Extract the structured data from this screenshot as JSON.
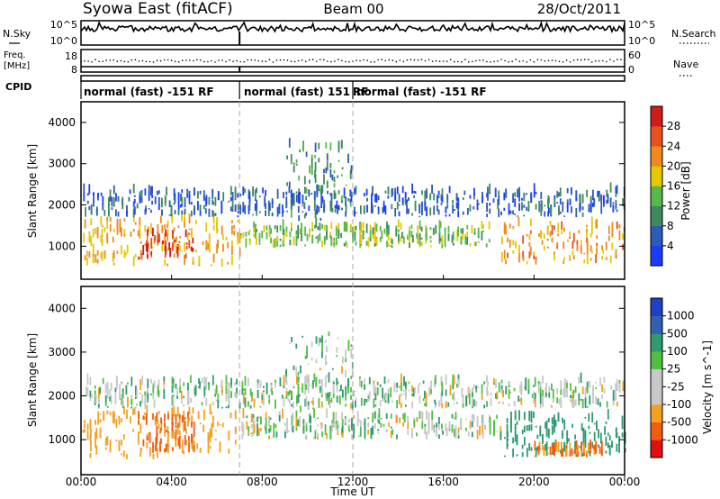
{
  "header": {
    "left": "Syowa East (fitACF)",
    "center": "Beam 00",
    "right": "28/Oct/2011"
  },
  "noise_panel": {
    "left_label": "N.Sky",
    "left_ticks": [
      "10^5",
      "10^0"
    ],
    "right_label": "N.Search",
    "right_ticks": [
      "10^5",
      "10^0"
    ]
  },
  "freq_panel": {
    "left_label_line1": "Freq.",
    "left_label_line2": "[MHz]",
    "left_ticks": [
      "18",
      "8"
    ],
    "right_label": "Nave",
    "right_ticks": [
      "60",
      "0"
    ]
  },
  "cpid_panel": {
    "label": "CPID",
    "segments": [
      {
        "text": "normal (fast) -151 RF",
        "start_hour": 0.0,
        "end_hour": 7.0
      },
      {
        "text": "normal (fast) 151",
        "start_hour": 7.0,
        "end_hour": 12.0
      },
      {
        "text": "RF",
        "start_hour": 12.0,
        "end_hour": 12.0
      },
      {
        "text": "normal (fast) -151 RF",
        "start_hour": 12.0,
        "end_hour": 24.0
      }
    ]
  },
  "x_axis": {
    "label": "Time UT",
    "ticks": [
      "00:00",
      "04:00",
      "08:00",
      "12:00",
      "16:00",
      "20:00",
      "00:00"
    ],
    "tick_hours": [
      0,
      4,
      8,
      12,
      16,
      20,
      24
    ]
  },
  "colors": {
    "power": [
      "#1a3cff",
      "#2e5ab8",
      "#3e8a5e",
      "#58b848",
      "#e4c800",
      "#f08a1c",
      "#e8501e",
      "#d21a1a"
    ],
    "velocity": [
      "#e01010",
      "#f05c10",
      "#f4a020",
      "#c8c8c8",
      "#c8c8c8",
      "#50c040",
      "#2e9a6e",
      "#3060b0",
      "#2040c8"
    ],
    "beam_line": "#aaaaaa"
  },
  "chart_data": [
    {
      "type": "heatmap",
      "title": "Power",
      "xlabel": "Time UT",
      "ylabel": "Slant Range [km]",
      "xlim": [
        0,
        24
      ],
      "ylim": [
        200,
        4500
      ],
      "yticks": [
        "1000",
        "2000",
        "3000",
        "4000"
      ],
      "ytick_values": [
        1000,
        2000,
        3000,
        4000
      ],
      "colorbar": {
        "label": "Power [dB]",
        "ticks": [
          "4",
          "8",
          "12",
          "16",
          "20",
          "24",
          "28"
        ],
        "range": [
          0,
          32
        ]
      },
      "bands": [
        {
          "t0": 0.0,
          "t1": 7.0,
          "r0": 500,
          "r1": 1600,
          "level": 20
        },
        {
          "t0": 2.5,
          "t1": 5.0,
          "r0": 650,
          "r1": 1300,
          "level": 28
        },
        {
          "t0": 7.0,
          "t1": 18.0,
          "r0": 950,
          "r1": 1450,
          "level": 14
        },
        {
          "t0": 18.5,
          "t1": 24.0,
          "r0": 550,
          "r1": 1500,
          "level": 22
        },
        {
          "t0": 9.0,
          "t1": 12.0,
          "r0": 1600,
          "r1": 3400,
          "level": 10
        },
        {
          "t0": 0.0,
          "t1": 24.0,
          "r0": 1700,
          "r1": 2300,
          "level": 6
        }
      ]
    },
    {
      "type": "heatmap",
      "title": "Velocity",
      "xlabel": "Time UT",
      "ylabel": "Slant Range [km]",
      "xlim": [
        0,
        24
      ],
      "ylim": [
        200,
        4500
      ],
      "yticks": [
        "1000",
        "2000",
        "3000",
        "4000"
      ],
      "ytick_values": [
        1000,
        2000,
        3000,
        4000
      ],
      "colorbar": {
        "label": "Velocity [m s^-1]",
        "ticks": [
          "1000",
          "500",
          "100",
          "25",
          "-25",
          "-100",
          "-500",
          "-1000"
        ]
      },
      "bands": [
        {
          "t0": 0.0,
          "t1": 6.8,
          "r0": 550,
          "r1": 1600,
          "level": -300
        },
        {
          "t0": 2.5,
          "t1": 5.0,
          "r0": 700,
          "r1": 1500,
          "level": -600
        },
        {
          "t0": 7.0,
          "t1": 18.5,
          "r0": 1000,
          "r1": 1500,
          "level": 0
        },
        {
          "t0": 18.5,
          "t1": 24.0,
          "r0": 600,
          "r1": 1500,
          "level": 300
        },
        {
          "t0": 20.0,
          "t1": 23.0,
          "r0": 600,
          "r1": 800,
          "level": -500
        },
        {
          "t0": 9.0,
          "t1": 12.0,
          "r0": 1600,
          "r1": 3400,
          "level": 40
        },
        {
          "t0": 0.0,
          "t1": 24.0,
          "r0": 1700,
          "r1": 2300,
          "level": 20
        }
      ]
    }
  ]
}
